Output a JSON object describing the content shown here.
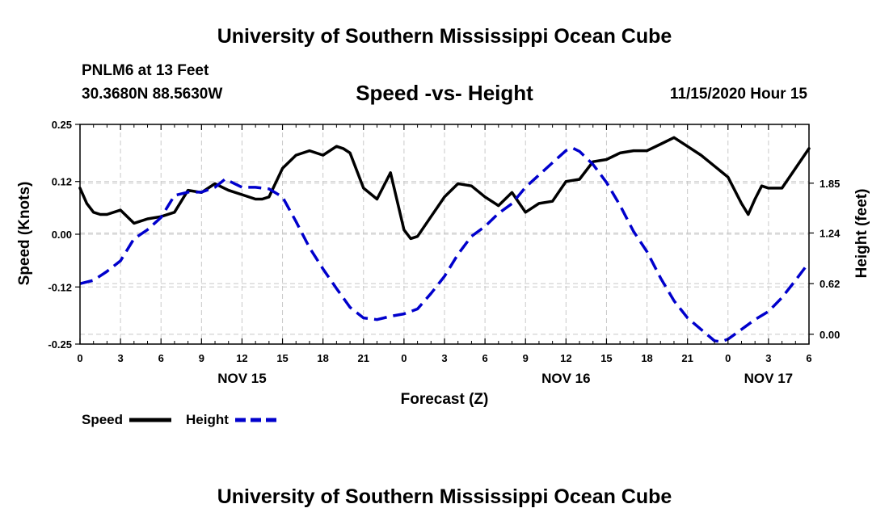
{
  "header": {
    "title": "University of Southern Mississippi Ocean Cube",
    "station": "PNLM6 at 13 Feet",
    "coords": "30.3680N 88.5630W",
    "datetime": "11/15/2020 Hour 15"
  },
  "footer": {
    "title": "University of Southern Mississippi Ocean Cube"
  },
  "chart_data": {
    "type": "line",
    "title": "Speed -vs- Height",
    "xlabel": "Forecast (Z)",
    "ylabel": "Speed (Knots)",
    "y2label": "Height (feet)",
    "x_unit": "forecast hours since 11/15/2020 00Z",
    "xlim": [
      0,
      54
    ],
    "ylim": [
      -0.25,
      0.25
    ],
    "y2lim": [
      -0.12,
      2.57
    ],
    "grid": true,
    "x_ticks": [
      0,
      3,
      6,
      9,
      12,
      15,
      18,
      21,
      24,
      27,
      30,
      33,
      36,
      39,
      42,
      45,
      48,
      51,
      54
    ],
    "x_tick_labels": [
      "0",
      "3",
      "6",
      "9",
      "12",
      "15",
      "18",
      "21",
      "0",
      "3",
      "6",
      "9",
      "12",
      "15",
      "18",
      "21",
      "0",
      "3",
      "6"
    ],
    "date_labels": [
      {
        "x": 12,
        "label": "NOV 15"
      },
      {
        "x": 36,
        "label": "NOV 16"
      },
      {
        "x": 51,
        "label": "NOV 17"
      }
    ],
    "y_ticks": [
      -0.25,
      -0.12,
      0.0,
      0.12,
      0.25
    ],
    "y_tick_labels": [
      "-0.25",
      "-0.12",
      "0.00",
      "0.12",
      "0.25"
    ],
    "y2_ticks": [
      0.0,
      0.62,
      1.24,
      1.85
    ],
    "y2_tick_labels": [
      "0.00",
      "0.62",
      "1.24",
      "1.85"
    ],
    "legend": [
      {
        "name": "Speed",
        "color": "#000000",
        "dash": "solid"
      },
      {
        "name": "Height",
        "color": "#0000cc",
        "dash": "dashed"
      }
    ],
    "series": [
      {
        "name": "Speed",
        "axis": "left",
        "color": "#000000",
        "x": [
          0,
          0.5,
          1,
          1.5,
          2,
          3,
          4,
          5,
          6,
          7,
          8,
          9,
          10,
          11,
          12,
          13,
          13.5,
          14,
          15,
          16,
          17,
          18,
          19,
          19.5,
          20,
          21,
          22,
          23,
          24,
          24.5,
          25,
          26,
          27,
          28,
          29,
          30,
          31,
          32,
          33,
          34,
          35,
          36,
          37,
          38,
          39,
          40,
          41,
          42,
          43,
          44,
          45,
          46,
          47,
          48,
          49,
          49.5,
          50,
          50.5,
          51,
          52,
          53,
          54
        ],
        "values": [
          0.105,
          0.07,
          0.05,
          0.045,
          0.045,
          0.055,
          0.025,
          0.035,
          0.04,
          0.05,
          0.1,
          0.095,
          0.115,
          0.1,
          0.09,
          0.08,
          0.08,
          0.085,
          0.15,
          0.18,
          0.19,
          0.18,
          0.2,
          0.195,
          0.185,
          0.105,
          0.08,
          0.14,
          0.01,
          -0.01,
          -0.005,
          0.04,
          0.085,
          0.115,
          0.11,
          0.085,
          0.065,
          0.095,
          0.05,
          0.07,
          0.075,
          0.12,
          0.125,
          0.165,
          0.17,
          0.185,
          0.19,
          0.19,
          0.205,
          0.22,
          0.2,
          0.18,
          0.155,
          0.13,
          0.07,
          0.045,
          0.08,
          0.11,
          0.105,
          0.105,
          0.15,
          0.195
        ]
      },
      {
        "name": "Height",
        "axis": "right",
        "color": "#0000cc",
        "x": [
          0,
          1,
          2,
          3,
          4,
          5,
          6,
          7,
          8,
          9,
          10,
          10.75,
          11.5,
          12,
          13,
          14,
          15,
          16,
          17,
          18,
          19,
          20,
          21,
          22,
          23,
          24,
          25,
          26,
          27,
          28,
          29,
          30,
          31,
          32,
          33,
          34,
          35,
          36,
          36.5,
          37,
          38,
          39,
          40,
          41,
          42,
          43,
          44,
          45,
          46,
          47,
          47.5,
          48,
          49,
          50,
          51,
          52,
          53,
          54
        ],
        "values": [
          0.62,
          0.66,
          0.77,
          0.9,
          1.17,
          1.28,
          1.43,
          1.7,
          1.74,
          1.74,
          1.8,
          1.9,
          1.84,
          1.8,
          1.8,
          1.78,
          1.68,
          1.38,
          1.06,
          0.8,
          0.56,
          0.33,
          0.2,
          0.18,
          0.22,
          0.25,
          0.31,
          0.5,
          0.71,
          0.98,
          1.2,
          1.32,
          1.48,
          1.6,
          1.8,
          1.95,
          2.1,
          2.25,
          2.28,
          2.24,
          2.08,
          1.86,
          1.58,
          1.26,
          1.01,
          0.69,
          0.41,
          0.2,
          0.06,
          -0.08,
          -0.09,
          -0.06,
          0.06,
          0.18,
          0.28,
          0.45,
          0.66,
          0.88
        ]
      }
    ]
  }
}
